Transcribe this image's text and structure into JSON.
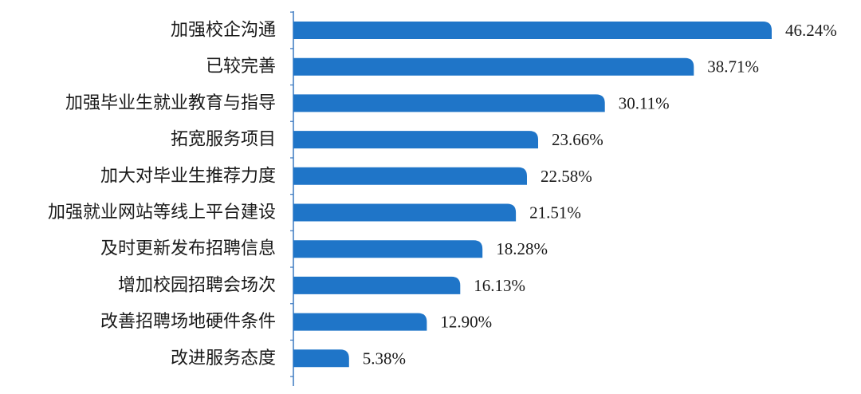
{
  "chart_data": {
    "type": "bar",
    "orientation": "horizontal",
    "categories": [
      "加强校企沟通",
      "已较完善",
      "加强毕业生就业教育与指导",
      "拓宽服务项目",
      "加大对毕业生推荐力度",
      "加强就业网站等线上平台建设",
      "及时更新发布招聘信息",
      "增加校园招聘会场次",
      "改善招聘场地硬件条件",
      "改进服务态度"
    ],
    "values": [
      46.24,
      38.71,
      30.11,
      23.66,
      22.58,
      21.51,
      18.28,
      16.13,
      12.9,
      5.38
    ],
    "value_labels": [
      "46.24%",
      "38.71%",
      "30.11%",
      "23.66%",
      "22.58%",
      "21.51%",
      "18.28%",
      "16.13%",
      "12.90%",
      "5.38%"
    ],
    "bar_color": "#1f75c8",
    "axis_color": "#3a78c0",
    "title": "",
    "xlabel": "",
    "ylabel": "",
    "grid": false,
    "legend": "none"
  }
}
